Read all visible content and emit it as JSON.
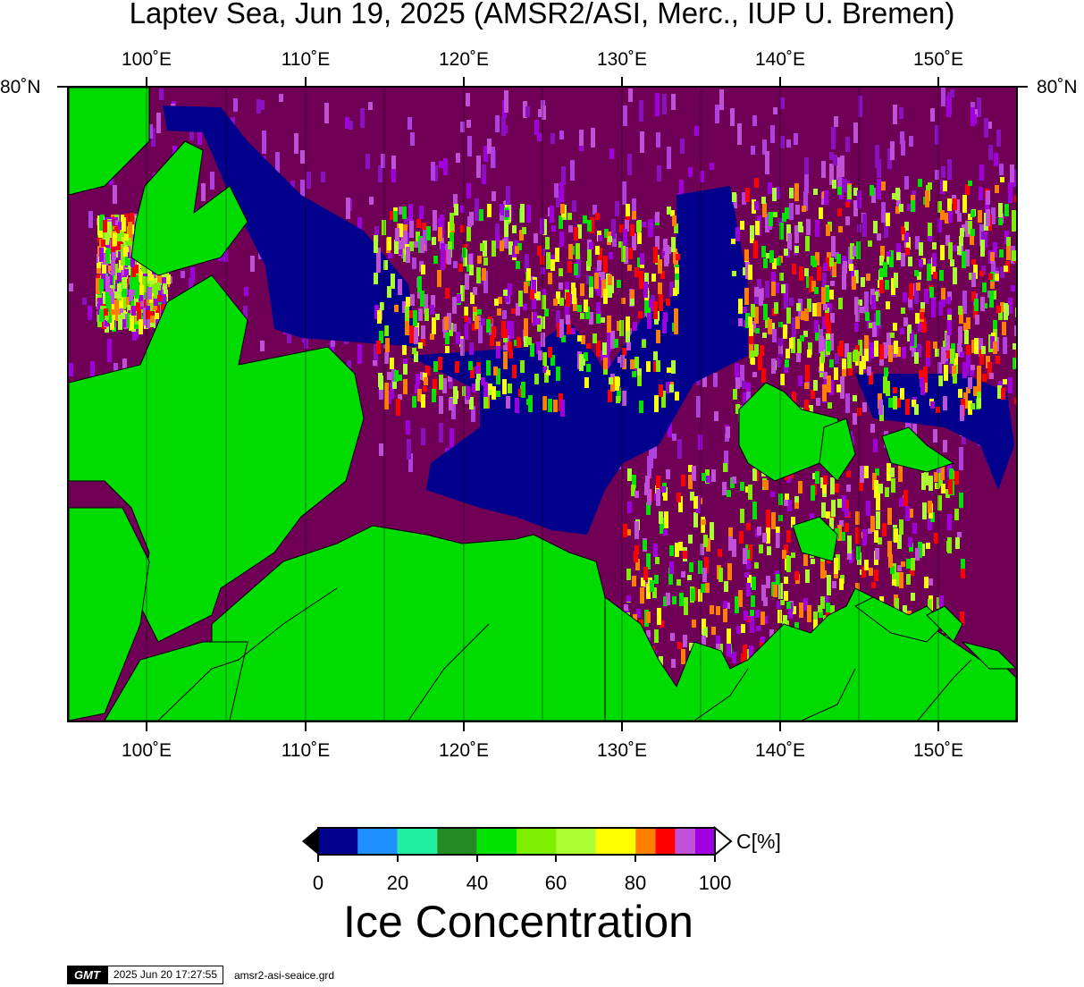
{
  "title": "Laptev Sea, Jun 19, 2025 (AMSR2/ASI, Merc., IUP U. Bremen)",
  "lon_labels": [
    "100˚E",
    "110˚E",
    "120˚E",
    "130˚E",
    "140˚E",
    "150˚E"
  ],
  "lat_labels": {
    "left": "80˚N",
    "right": "80˚N"
  },
  "colorbar": {
    "title": "Ice Concentration",
    "unit": "C[%]",
    "ticks": [
      "0",
      "20",
      "40",
      "60",
      "80",
      "100"
    ],
    "colors": [
      "#00008c",
      "#1e90ff",
      "#20f0a0",
      "#228b22",
      "#00e400",
      "#7cf000",
      "#aaff30",
      "#ffff00",
      "#ff8000",
      "#ff0000",
      "#c050d8",
      "#a000e0"
    ],
    "land_color": "#00dc00",
    "sea_open_color": "#6f0056"
  },
  "stamp": {
    "logo": "GMT",
    "date": "2025 Jun 20 17:27:55",
    "file": "amsr2-asi-seaice.grd"
  }
}
